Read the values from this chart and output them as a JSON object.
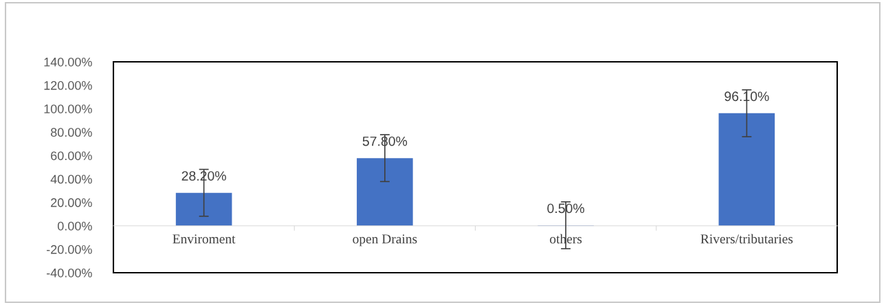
{
  "chart_data": {
    "type": "bar",
    "categories": [
      "Enviroment",
      "open Drains",
      "others",
      "Rivers/tributaries"
    ],
    "series": [
      {
        "color": "#4472c4",
        "values": [
          28.2,
          57.8,
          0.5,
          96.1
        ],
        "errors": [
          20,
          20,
          20,
          20
        ],
        "value_labels": [
          "28.20%",
          "57.80%",
          "0.50%",
          "96.10%"
        ]
      }
    ],
    "ylim": [
      -40,
      140
    ],
    "yticks": [
      {
        "value": -40,
        "label": "-40.00%"
      },
      {
        "value": -20,
        "label": "-20.00%"
      },
      {
        "value": 0,
        "label": "0.00%"
      },
      {
        "value": 20,
        "label": "20.00%"
      },
      {
        "value": 40,
        "label": "40.00%"
      },
      {
        "value": 60,
        "label": "60.00%"
      },
      {
        "value": 80,
        "label": "80.00%"
      },
      {
        "value": 100,
        "label": "100.00%"
      },
      {
        "value": 120,
        "label": "120.00%"
      },
      {
        "value": 140,
        "label": "140.00%"
      }
    ],
    "grid": false
  }
}
